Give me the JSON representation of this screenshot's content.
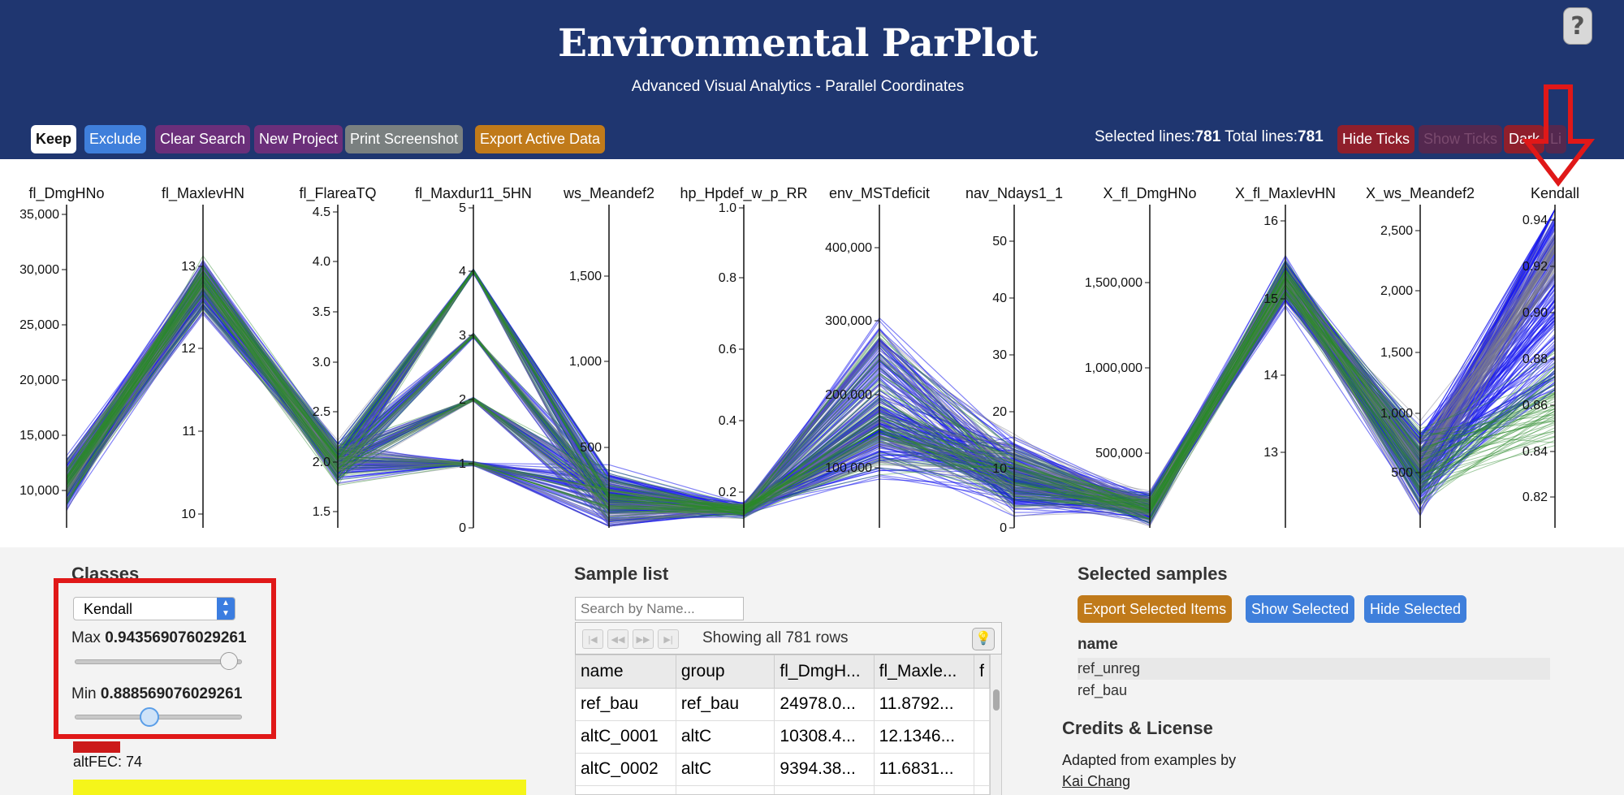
{
  "header": {
    "title": "Environmental ParPlot",
    "subtitle": "Advanced Visual Analytics - Parallel Coordinates",
    "help_label": "?"
  },
  "toolbar": {
    "buttons": [
      {
        "label": "Keep",
        "color": "#ffffff",
        "text_color": "#111111"
      },
      {
        "label": "Exclude",
        "color": "#3f7fdb",
        "text_color": "#ffffff"
      },
      {
        "label": "Clear Search",
        "color": "#6b2f7a",
        "text_color": "#ffffff"
      },
      {
        "label": "New Project",
        "color": "#6b2f7a",
        "text_color": "#ffffff"
      },
      {
        "label": "Print Screenshot",
        "color": "#7a8080",
        "text_color": "#ffffff"
      },
      {
        "label": "Export Active Data",
        "color": "#c07a1a",
        "text_color": "#ffffff"
      }
    ],
    "selected_label": "Selected lines:",
    "selected_value": "781",
    "total_label": "Total lines:",
    "total_value": "781",
    "right_buttons": [
      {
        "label": "Hide Ticks",
        "color": "#8f1f2c",
        "text_color": "#ffffff"
      },
      {
        "label": "Show Ticks",
        "color": "#54284f",
        "text_color": "#7a4a6e"
      },
      {
        "label": "Dark",
        "color": "#8f1f2c",
        "text_color": "#ffffff"
      },
      {
        "label": "Li",
        "color": "#54284f",
        "text_color": "#7a4a6e"
      }
    ]
  },
  "chart_data": {
    "type": "parallel-coordinates",
    "axes": [
      {
        "name": "fl_DmgHNo",
        "ticks": [
          "35,000",
          "30,000",
          "25,000",
          "20,000",
          "15,000",
          "10,000"
        ]
      },
      {
        "name": "fl_MaxlevHN",
        "ticks": [
          "13",
          "12",
          "11",
          "10"
        ]
      },
      {
        "name": "fl_FlareaTQ",
        "ticks": [
          "4.5",
          "4.0",
          "3.5",
          "3.0",
          "2.5",
          "2.0",
          "1.5"
        ]
      },
      {
        "name": "fl_Maxdur11_5HN",
        "ticks": [
          "5",
          "4",
          "3",
          "2",
          "1",
          "0"
        ]
      },
      {
        "name": "ws_Meandef2",
        "ticks": [
          "1,500",
          "1,000",
          "500"
        ]
      },
      {
        "name": "hp_Hpdef_w_p_RR",
        "ticks": [
          "1.0",
          "0.8",
          "0.6",
          "0.4",
          "0.2"
        ]
      },
      {
        "name": "env_MSTdeficit",
        "ticks": [
          "400,000",
          "300,000",
          "200,000",
          "100,000"
        ]
      },
      {
        "name": "nav_Ndays1_1",
        "ticks": [
          "50",
          "40",
          "30",
          "20",
          "10",
          "0"
        ]
      },
      {
        "name": "X_fl_DmgHNo",
        "ticks": [
          "1,500,000",
          "1,000,000",
          "500,000"
        ]
      },
      {
        "name": "X_fl_MaxlevHN",
        "ticks": [
          "16",
          "15",
          "14",
          "13"
        ]
      },
      {
        "name": "X_ws_Meandef2",
        "ticks": [
          "2,500",
          "2,000",
          "1,500",
          "1,000",
          "500"
        ]
      },
      {
        "name": "Kendall",
        "ticks": [
          "0.94",
          "0.92",
          "0.90",
          "0.88",
          "0.86",
          "0.84",
          "0.82"
        ]
      }
    ],
    "line_colors": [
      "#1a1aee",
      "#2a8a2a",
      "#7a7a8a"
    ]
  },
  "classes": {
    "title": "Classes",
    "selected": "Kendall",
    "max_label": "Max",
    "max_value": "0.943569076029261",
    "min_label": "Min",
    "min_value": "0.888569076029261",
    "legend": [
      {
        "label": "altFEC: 74",
        "color": "#cc1a1a"
      },
      {
        "color": "#f5f51a"
      }
    ]
  },
  "sample_list": {
    "title": "Sample list",
    "search_placeholder": "Search by Name...",
    "pager_text": "Showing all 781 rows",
    "columns": [
      "name",
      "group",
      "fl_DmgH...",
      "fl_Maxle...",
      "f"
    ],
    "rows": [
      [
        "ref_bau",
        "ref_bau",
        "24978.0...",
        "11.8792..."
      ],
      [
        "altC_0001",
        "altC",
        "10308.4...",
        "12.1346..."
      ],
      [
        "altC_0002",
        "altC",
        "9394.38...",
        "11.6831..."
      ]
    ]
  },
  "selected_samples": {
    "title": "Selected samples",
    "buttons": [
      {
        "label": "Export Selected Items",
        "color": "#c07a1a"
      },
      {
        "label": "Show Selected",
        "color": "#3f7fdb"
      },
      {
        "label": "Hide Selected",
        "color": "#3f7fdb"
      }
    ],
    "column": "name",
    "rows": [
      "ref_unreg",
      "ref_bau"
    ]
  },
  "credits": {
    "title": "Credits & License",
    "text": "Adapted from examples by",
    "link": "Kai Chang"
  }
}
